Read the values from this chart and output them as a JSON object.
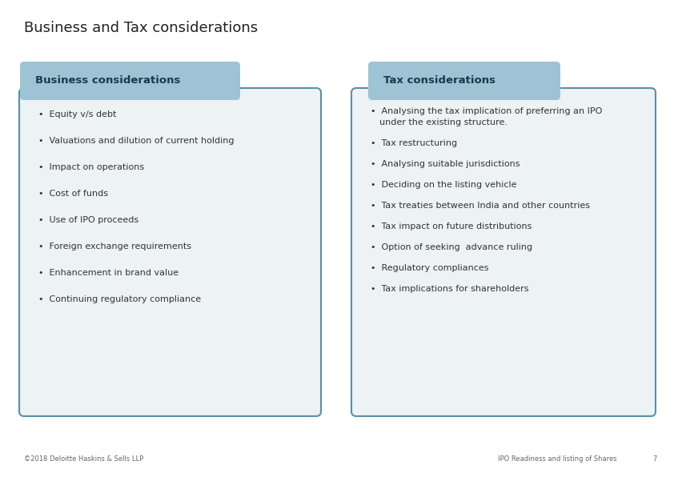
{
  "title": "Business and Tax considerations",
  "title_fontsize": 13,
  "title_color": "#222222",
  "background_color": "#ffffff",
  "left_header": "Business considerations",
  "right_header": "Tax considerations",
  "header_bg_color": "#9dc3d4",
  "header_text_color": "#1a3a4a",
  "body_bg_color": "#edf2f5",
  "body_border_color": "#5a8fa8",
  "left_bullets": [
    "Equity v/s debt",
    "Valuations and dilution of current holding",
    "Impact on operations",
    "Cost of funds",
    "Use of IPO proceeds",
    "Foreign exchange requirements",
    "Enhancement in brand value",
    "Continuing regulatory compliance"
  ],
  "right_bullets": [
    [
      "Analysing the tax implication of preferring an IPO",
      "under the existing structure."
    ],
    [
      "Tax restructuring"
    ],
    [
      "Analysing suitable jurisdictions"
    ],
    [
      "Deciding on the listing vehicle"
    ],
    [
      "Tax treaties between India and other countries"
    ],
    [
      "Tax impact on future distributions"
    ],
    [
      "Option of seeking  advance ruling"
    ],
    [
      "Regulatory compliances"
    ],
    [
      "Tax implications for shareholders"
    ]
  ],
  "footer_left": "©2018 Deloitte Haskins & Sells LLP",
  "footer_right": "IPO Readiness and listing of Shares",
  "footer_page": "7",
  "bullet_fontsize": 8,
  "header_fontsize": 9.5,
  "footer_fontsize": 6
}
